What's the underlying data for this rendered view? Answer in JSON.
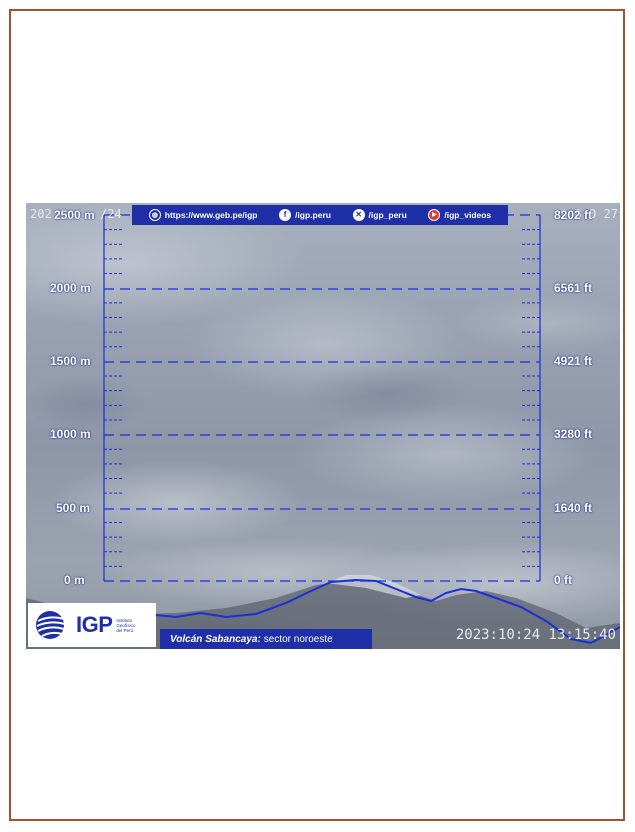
{
  "webcam": {
    "timestamp_bottom": "2023:10:24 13:15:40",
    "timestamp_top_left": "202",
    "timestamp_top_left_tail": "/24",
    "timestamp_top_right": "9  8  0  27"
  },
  "banner": {
    "website": "https://www.geb.pe/igp",
    "facebook": "/igp.peru",
    "x": "/igp_peru",
    "youtube": "/igp_videos",
    "icons": [
      "globe-icon",
      "facebook-icon",
      "x-icon",
      "youtube-icon"
    ]
  },
  "scale": {
    "left_labels": [
      "2500 m",
      "2000 m",
      "1500 m",
      "1000 m",
      "500 m",
      "0 m"
    ],
    "right_labels": [
      "8202 ft",
      "6561 ft",
      "4921 ft",
      "3280 ft",
      "1640 ft",
      "0 ft"
    ],
    "line_color": "#1a2fd8"
  },
  "logo": {
    "name": "IGP",
    "subtitle_line1": "Instituto",
    "subtitle_line2": "Geofísico",
    "subtitle_line3": "del Perú"
  },
  "caption": {
    "volcano": "Volcán Sabancaya:",
    "sector": "sector noroeste"
  },
  "colors": {
    "frame_border": "#a0522d",
    "brand_blue": "#1f2fa8"
  }
}
